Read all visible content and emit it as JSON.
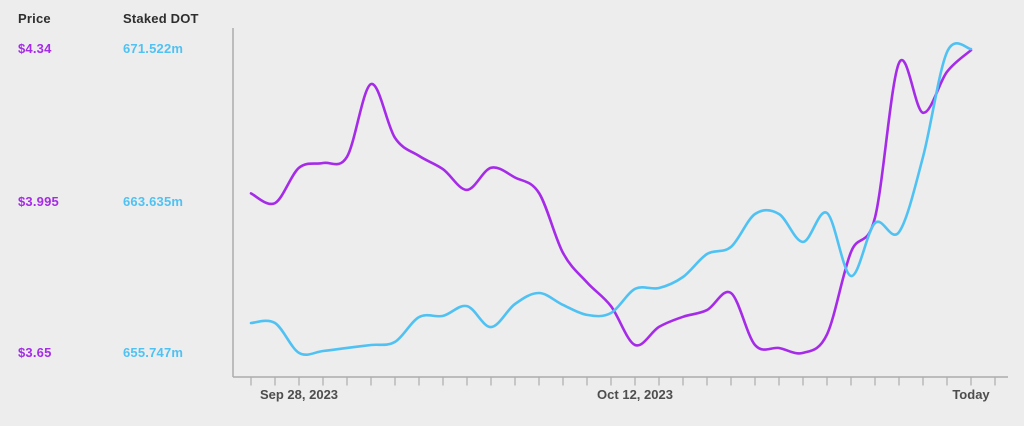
{
  "panels": {
    "price": {
      "header": "Price",
      "values": [
        "$4.34",
        "$3.995",
        "$3.65"
      ],
      "color": "#A52BE8"
    },
    "staked": {
      "header": "Staked DOT",
      "values": [
        "671.522m",
        "663.635m",
        "655.747m"
      ],
      "color": "#4FC2F3"
    }
  },
  "chart_data": {
    "type": "line",
    "title": "",
    "x_axis": {
      "labels": [
        {
          "text": "Sep 28, 2023",
          "tick_index": 2
        },
        {
          "text": "Oct 12, 2023",
          "tick_index": 16
        },
        {
          "text": "Today",
          "tick_index": 30
        }
      ],
      "tick_count": 32,
      "points_count": 31,
      "grid": false
    },
    "y_axis_price": {
      "title": "Price",
      "labels": [
        "$4.34",
        "$3.995",
        "$3.65"
      ],
      "top_value": 4.34,
      "mid_value": 3.995,
      "bottom_value": 3.65
    },
    "y_axis_staked": {
      "title": "Staked DOT",
      "labels": [
        "671.522m",
        "663.635m",
        "655.747m"
      ],
      "top_value": 671.522,
      "mid_value": 663.635,
      "bottom_value": 655.747
    },
    "series": [
      {
        "name": "Price",
        "axis": "price",
        "color": "#A52BE8",
        "values": [
          4.01,
          3.988,
          4.068,
          4.079,
          4.093,
          4.258,
          4.136,
          4.095,
          4.065,
          4.018,
          4.068,
          4.046,
          4.011,
          3.875,
          3.808,
          3.754,
          3.666,
          3.707,
          3.73,
          3.745,
          3.784,
          3.666,
          3.659,
          3.648,
          3.69,
          3.877,
          3.955,
          4.306,
          4.193,
          4.286,
          4.335
        ]
      },
      {
        "name": "Staked DOT",
        "axis": "staked",
        "color": "#4FC2F3",
        "values": [
          657.25,
          657.25,
          655.7,
          655.8,
          655.96,
          656.11,
          656.27,
          657.56,
          657.62,
          658.13,
          657.04,
          658.24,
          658.81,
          658.19,
          657.67,
          657.77,
          659.02,
          659.07,
          659.64,
          660.83,
          661.2,
          662.91,
          662.91,
          661.46,
          662.96,
          659.69,
          662.44,
          661.97,
          665.87,
          671.31,
          671.47
        ]
      }
    ],
    "colors": {
      "background": "#EDEDED",
      "axis": "#ACACAC",
      "x_label_text": "#4D4D4D",
      "header_text": "#2E2E2E",
      "price_line": "#A52BE8",
      "staked_line": "#4FC2F3"
    },
    "legend_position": "top-left-columns"
  }
}
